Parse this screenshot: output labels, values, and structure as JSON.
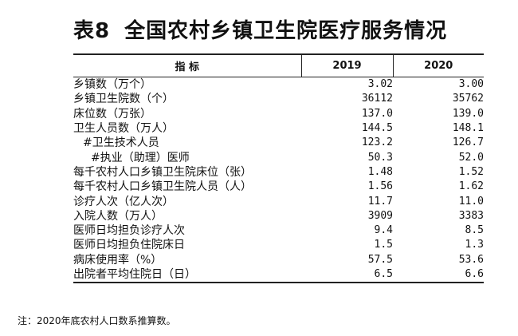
{
  "title": {
    "number": "表8",
    "text": "全国农村乡镇卫生院医疗服务情况"
  },
  "table": {
    "headers": {
      "indicator": "指 标",
      "y2019": "2019",
      "y2020": "2020"
    },
    "rows": [
      {
        "label": "乡镇数（万个）",
        "y2019": "3.02",
        "y2020": "3.00"
      },
      {
        "label": "乡镇卫生院数（个）",
        "y2019": "36112",
        "y2020": "35762"
      },
      {
        "label": "床位数（万张）",
        "y2019": "137.0",
        "y2020": "139.0"
      },
      {
        "label": "卫生人员数（万人）",
        "y2019": "144.5",
        "y2020": "148.1"
      },
      {
        "label": "#卫生技术人员",
        "y2019": "123.2",
        "y2020": "126.7"
      },
      {
        "label": "#执业（助理）医师",
        "y2019": "50.3",
        "y2020": "52.0"
      },
      {
        "label": "每千农村人口乡镇卫生院床位（张）",
        "y2019": "1.48",
        "y2020": "1.52"
      },
      {
        "label": "每千农村人口乡镇卫生院人员（人）",
        "y2019": "1.56",
        "y2020": "1.62"
      },
      {
        "label": "诊疗人次（亿人次）",
        "y2019": "11.7",
        "y2020": "11.0"
      },
      {
        "label": "入院人数（万人）",
        "y2019": "3909",
        "y2020": "3383"
      },
      {
        "label": "医师日均担负诊疗人次",
        "y2019": "9.4",
        "y2020": "8.5"
      },
      {
        "label": "医师日均担负住院床日",
        "y2019": "1.5",
        "y2020": "1.3"
      },
      {
        "label": "病床使用率（%）",
        "y2019": "57.5",
        "y2020": "53.6"
      },
      {
        "label": "出院者平均住院日（日）",
        "y2019": "6.5",
        "y2020": "6.6"
      }
    ]
  },
  "note": "注：2020年底农村人口数系推算数。"
}
